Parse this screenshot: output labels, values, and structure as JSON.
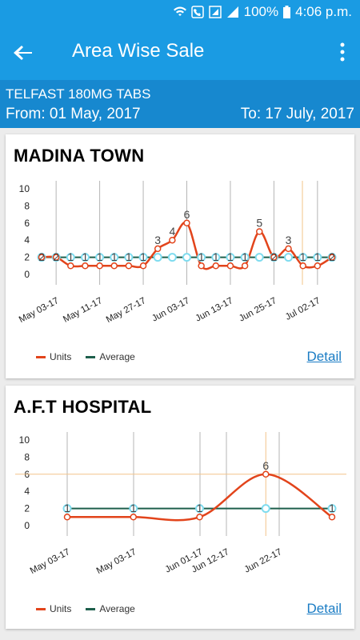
{
  "status_bar": {
    "battery": "100%",
    "time": "4:06 p.m."
  },
  "app_bar": {
    "title": "Area Wise Sale"
  },
  "subheader": {
    "product": "TELFAST 180MG TABS",
    "from": "From: 01 May, 2017",
    "to": "To: 17 July, 2017"
  },
  "colors": {
    "primary": "#1a9be3",
    "units": "#e2441b",
    "average": "#1e5f4c",
    "marker": "#7fdcef"
  },
  "cards": [
    {
      "title": "MADINA TOWN",
      "detail_label": "Detail"
    },
    {
      "title": "A.F.T HOSPITAL",
      "detail_label": "Detail"
    }
  ],
  "legend": {
    "units": "Units",
    "average": "Average"
  },
  "chart_data": [
    {
      "type": "line",
      "title": "MADINA TOWN",
      "ylim": [
        0,
        10
      ],
      "yticks": [
        0,
        2,
        4,
        6,
        8,
        10
      ],
      "tick_labels": [
        "May 03-17",
        "May 11-17",
        "May 27-17",
        "Jun 03-17",
        "Jun 13-17",
        "Jun 25-17",
        "Jul 02-17"
      ],
      "series": [
        {
          "name": "Units",
          "values": [
            2,
            2,
            1,
            1,
            1,
            1,
            1,
            1,
            3,
            4,
            6,
            1,
            1,
            1,
            1,
            5,
            2,
            3,
            1,
            1,
            2
          ]
        },
        {
          "name": "Average",
          "values": [
            2,
            2,
            2,
            2,
            2,
            2,
            2,
            2,
            2,
            2,
            2,
            2,
            2,
            2,
            2,
            2,
            2,
            2,
            2,
            2,
            2
          ]
        }
      ],
      "data_labels": [
        "2",
        "2",
        "1",
        "1",
        "1",
        "1",
        "1",
        "1",
        "3",
        "4",
        "6",
        "1",
        "1",
        "1",
        "1",
        "5",
        "2",
        "3",
        "1",
        "1",
        "2"
      ],
      "grid": true
    },
    {
      "type": "line",
      "title": "A.F.T HOSPITAL",
      "ylim": [
        0,
        10
      ],
      "yticks": [
        0,
        2,
        4,
        6,
        8,
        10
      ],
      "tick_labels": [
        "May 03-17",
        "May 03-17",
        "Jun 01-17",
        "Jun 12-17",
        "Jun 22-17"
      ],
      "series": [
        {
          "name": "Units",
          "values": [
            1,
            1,
            1,
            6,
            1
          ]
        },
        {
          "name": "Average",
          "values": [
            2,
            2,
            2,
            2,
            2
          ]
        }
      ],
      "data_labels": [
        "1",
        "1",
        "1",
        "6",
        "1"
      ],
      "grid": true
    }
  ]
}
